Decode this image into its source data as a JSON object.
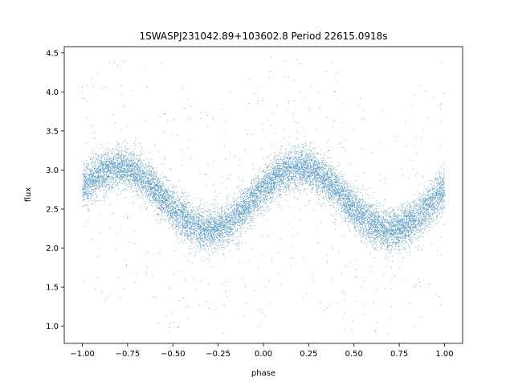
{
  "chart_data": {
    "type": "scatter",
    "title": "1SWASPJ231042.89+103602.8 Period 22615.0918s",
    "xlabel": "phase",
    "ylabel": "flux",
    "xlim": [
      -1.1,
      1.1
    ],
    "ylim": [
      0.78,
      4.58
    ],
    "xticks": [
      -1.0,
      -0.75,
      -0.5,
      -0.25,
      0.0,
      0.25,
      0.5,
      0.75,
      1.0
    ],
    "xtick_labels": [
      "−1.00",
      "−0.75",
      "−0.50",
      "−0.25",
      "0.00",
      "0.25",
      "0.50",
      "0.75",
      "1.00"
    ],
    "yticks": [
      1.0,
      1.5,
      2.0,
      2.5,
      3.0,
      3.5,
      4.0,
      4.5
    ],
    "ytick_labels": [
      "1.0",
      "1.5",
      "2.0",
      "2.5",
      "3.0",
      "3.5",
      "4.0",
      "4.5"
    ],
    "grid": false,
    "point_color": "#1f77b4",
    "series_model": {
      "x_range": [
        -1.0,
        1.0
      ],
      "mean": 2.63,
      "amplitude": 0.4,
      "peak_phases": [
        -0.8,
        0.2
      ],
      "trough_phases": [
        -0.3,
        0.7
      ],
      "scatter_sigma": 0.13
    }
  }
}
